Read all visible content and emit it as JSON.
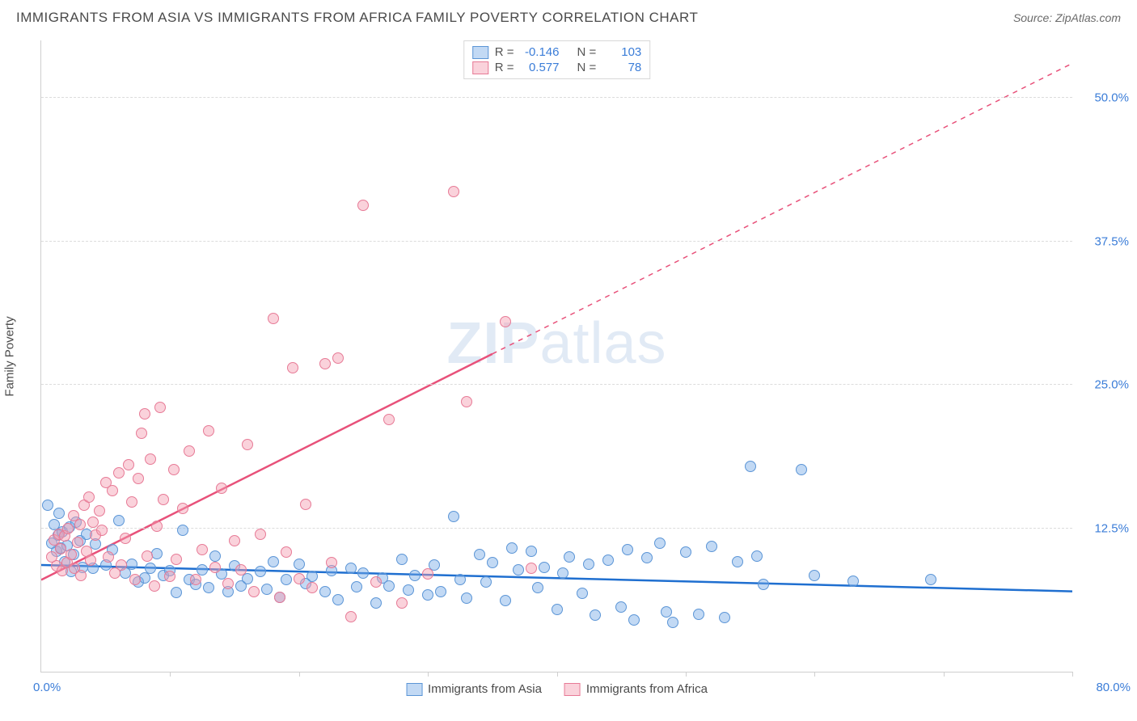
{
  "title": "IMMIGRANTS FROM ASIA VS IMMIGRANTS FROM AFRICA FAMILY POVERTY CORRELATION CHART",
  "source_prefix": "Source: ",
  "source_name": "ZipAtlas.com",
  "watermark_a": "ZIP",
  "watermark_b": "atlas",
  "chart": {
    "type": "scatter",
    "xlim": [
      0,
      80
    ],
    "ylim": [
      0,
      55
    ],
    "x_origin_label": "0.0%",
    "x_max_label": "80.0%",
    "yticks": [
      12.5,
      25.0,
      37.5,
      50.0
    ],
    "ytick_labels": [
      "12.5%",
      "25.0%",
      "37.5%",
      "50.0%"
    ],
    "xtick_positions": [
      10,
      20,
      30,
      40,
      50,
      60,
      70,
      80
    ],
    "yaxis_label": "Family Poverty",
    "xaxis_label": "",
    "background_color": "#ffffff",
    "grid_color": "#dcdcdc",
    "axis_color": "#cfcfcf",
    "tick_label_color": "#3b7dd8",
    "series": [
      {
        "id": "asia",
        "label": "Immigrants from Asia",
        "fill": "rgba(120,170,230,0.45)",
        "stroke": "#5b95d6",
        "trend_color": "#1f6fd0",
        "trend_width": 2.5,
        "trend": {
          "x1": 0,
          "y1": 9.3,
          "x2": 80,
          "y2": 7.0,
          "dash_after_x": null
        },
        "stats": {
          "R": "-0.146",
          "N": "103"
        },
        "marker_radius": 7,
        "points": [
          [
            0.5,
            14.5
          ],
          [
            0.8,
            11.2
          ],
          [
            1.0,
            12.8
          ],
          [
            1.2,
            10.5
          ],
          [
            1.3,
            11.9
          ],
          [
            1.5,
            10.8
          ],
          [
            1.6,
            12.2
          ],
          [
            1.8,
            9.6
          ],
          [
            2.0,
            11.0
          ],
          [
            2.2,
            12.6
          ],
          [
            2.3,
            8.7
          ],
          [
            2.5,
            10.2
          ],
          [
            3.0,
            11.4
          ],
          [
            3.2,
            9.1
          ],
          [
            3.5,
            12.0
          ],
          [
            4.0,
            9.0
          ],
          [
            4.2,
            11.1
          ],
          [
            5.0,
            9.3
          ],
          [
            5.5,
            10.6
          ],
          [
            6.0,
            13.2
          ],
          [
            6.5,
            8.6
          ],
          [
            7.0,
            9.4
          ],
          [
            7.5,
            7.8
          ],
          [
            8.0,
            8.2
          ],
          [
            8.5,
            9.0
          ],
          [
            9.0,
            10.3
          ],
          [
            9.5,
            8.4
          ],
          [
            10.0,
            8.8
          ],
          [
            10.5,
            6.9
          ],
          [
            11.0,
            12.3
          ],
          [
            11.5,
            8.0
          ],
          [
            12.0,
            7.6
          ],
          [
            12.5,
            8.9
          ],
          [
            13.0,
            7.3
          ],
          [
            13.5,
            10.1
          ],
          [
            14.0,
            8.5
          ],
          [
            14.5,
            7.0
          ],
          [
            15.0,
            9.2
          ],
          [
            15.5,
            7.5
          ],
          [
            16.0,
            8.1
          ],
          [
            17.0,
            8.7
          ],
          [
            17.5,
            7.2
          ],
          [
            18.0,
            9.6
          ],
          [
            18.5,
            6.5
          ],
          [
            19.0,
            8.0
          ],
          [
            20.0,
            9.4
          ],
          [
            20.5,
            7.7
          ],
          [
            21.0,
            8.3
          ],
          [
            22.0,
            7.0
          ],
          [
            22.5,
            8.8
          ],
          [
            23.0,
            6.3
          ],
          [
            24.0,
            9.0
          ],
          [
            24.5,
            7.4
          ],
          [
            25.0,
            8.6
          ],
          [
            26.0,
            6.0
          ],
          [
            26.5,
            8.2
          ],
          [
            27.0,
            7.5
          ],
          [
            28.0,
            9.8
          ],
          [
            28.5,
            7.1
          ],
          [
            29.0,
            8.4
          ],
          [
            30.0,
            6.7
          ],
          [
            30.5,
            9.3
          ],
          [
            31.0,
            7.0
          ],
          [
            32.0,
            13.5
          ],
          [
            32.5,
            8.0
          ],
          [
            33.0,
            6.4
          ],
          [
            34.0,
            10.2
          ],
          [
            34.5,
            7.8
          ],
          [
            35.0,
            9.5
          ],
          [
            36.0,
            6.2
          ],
          [
            36.5,
            10.8
          ],
          [
            37.0,
            8.9
          ],
          [
            38.0,
            10.5
          ],
          [
            38.5,
            7.3
          ],
          [
            39.0,
            9.1
          ],
          [
            40.0,
            5.4
          ],
          [
            40.5,
            8.6
          ],
          [
            41.0,
            10.0
          ],
          [
            42.0,
            6.8
          ],
          [
            42.5,
            9.4
          ],
          [
            43.0,
            4.9
          ],
          [
            44.0,
            9.7
          ],
          [
            45.0,
            5.6
          ],
          [
            45.5,
            10.6
          ],
          [
            46.0,
            4.5
          ],
          [
            47.0,
            9.9
          ],
          [
            48.0,
            11.2
          ],
          [
            48.5,
            5.2
          ],
          [
            49.0,
            4.3
          ],
          [
            50.0,
            10.4
          ],
          [
            51.0,
            5.0
          ],
          [
            52.0,
            10.9
          ],
          [
            53.0,
            4.7
          ],
          [
            54.0,
            9.6
          ],
          [
            55.0,
            17.9
          ],
          [
            55.5,
            10.1
          ],
          [
            56.0,
            7.6
          ],
          [
            59.0,
            17.6
          ],
          [
            60.0,
            8.4
          ],
          [
            63.0,
            7.9
          ],
          [
            69.0,
            8.0
          ],
          [
            1.4,
            13.8
          ],
          [
            2.7,
            13.0
          ]
        ]
      },
      {
        "id": "africa",
        "label": "Immigrants from Africa",
        "fill": "rgba(245,155,175,0.45)",
        "stroke": "#e77a96",
        "trend_color": "#e8517a",
        "trend_width": 2.5,
        "trend": {
          "x1": 0,
          "y1": 8.0,
          "x2": 80,
          "y2": 53.0,
          "dash_after_x": 35
        },
        "stats": {
          "R": "0.577",
          "N": "78"
        },
        "marker_radius": 7,
        "points": [
          [
            0.8,
            10.0
          ],
          [
            1.0,
            11.5
          ],
          [
            1.2,
            9.2
          ],
          [
            1.4,
            12.0
          ],
          [
            1.5,
            10.7
          ],
          [
            1.6,
            8.8
          ],
          [
            1.8,
            11.8
          ],
          [
            2.0,
            9.5
          ],
          [
            2.1,
            12.5
          ],
          [
            2.3,
            10.2
          ],
          [
            2.5,
            13.6
          ],
          [
            2.6,
            9.0
          ],
          [
            2.8,
            11.3
          ],
          [
            3.0,
            12.8
          ],
          [
            3.1,
            8.4
          ],
          [
            3.3,
            14.5
          ],
          [
            3.5,
            10.5
          ],
          [
            3.7,
            15.2
          ],
          [
            3.8,
            9.7
          ],
          [
            4.0,
            13.0
          ],
          [
            4.2,
            11.9
          ],
          [
            4.5,
            14.0
          ],
          [
            4.7,
            12.3
          ],
          [
            5.0,
            16.5
          ],
          [
            5.2,
            10.0
          ],
          [
            5.5,
            15.8
          ],
          [
            5.7,
            8.6
          ],
          [
            6.0,
            17.3
          ],
          [
            6.2,
            9.3
          ],
          [
            6.5,
            11.6
          ],
          [
            6.8,
            18.0
          ],
          [
            7.0,
            14.8
          ],
          [
            7.3,
            8.0
          ],
          [
            7.5,
            16.8
          ],
          [
            8.0,
            22.5
          ],
          [
            8.2,
            10.1
          ],
          [
            8.5,
            18.5
          ],
          [
            8.8,
            7.5
          ],
          [
            9.0,
            12.7
          ],
          [
            9.5,
            15.0
          ],
          [
            10.0,
            8.3
          ],
          [
            10.3,
            17.6
          ],
          [
            10.5,
            9.8
          ],
          [
            11.0,
            14.2
          ],
          [
            11.5,
            19.2
          ],
          [
            12.0,
            8.0
          ],
          [
            12.5,
            10.6
          ],
          [
            13.0,
            21.0
          ],
          [
            13.5,
            9.1
          ],
          [
            14.0,
            16.0
          ],
          [
            14.5,
            7.7
          ],
          [
            15.0,
            11.4
          ],
          [
            15.5,
            8.9
          ],
          [
            16.0,
            19.8
          ],
          [
            16.5,
            7.0
          ],
          [
            17.0,
            12.0
          ],
          [
            18.0,
            30.8
          ],
          [
            18.5,
            6.5
          ],
          [
            19.0,
            10.4
          ],
          [
            19.5,
            26.5
          ],
          [
            20.0,
            8.1
          ],
          [
            20.5,
            14.6
          ],
          [
            21.0,
            7.3
          ],
          [
            22.0,
            26.8
          ],
          [
            22.5,
            9.5
          ],
          [
            23.0,
            27.3
          ],
          [
            24.0,
            4.8
          ],
          [
            25.0,
            40.6
          ],
          [
            26.0,
            7.8
          ],
          [
            27.0,
            22.0
          ],
          [
            28.0,
            6.0
          ],
          [
            30.0,
            8.5
          ],
          [
            32.0,
            41.8
          ],
          [
            33.0,
            23.5
          ],
          [
            36.0,
            30.5
          ],
          [
            38.0,
            9.0
          ],
          [
            7.8,
            20.8
          ],
          [
            9.2,
            23.0
          ]
        ]
      }
    ],
    "legend": {
      "r_label": "R =",
      "n_label": "N ="
    }
  }
}
